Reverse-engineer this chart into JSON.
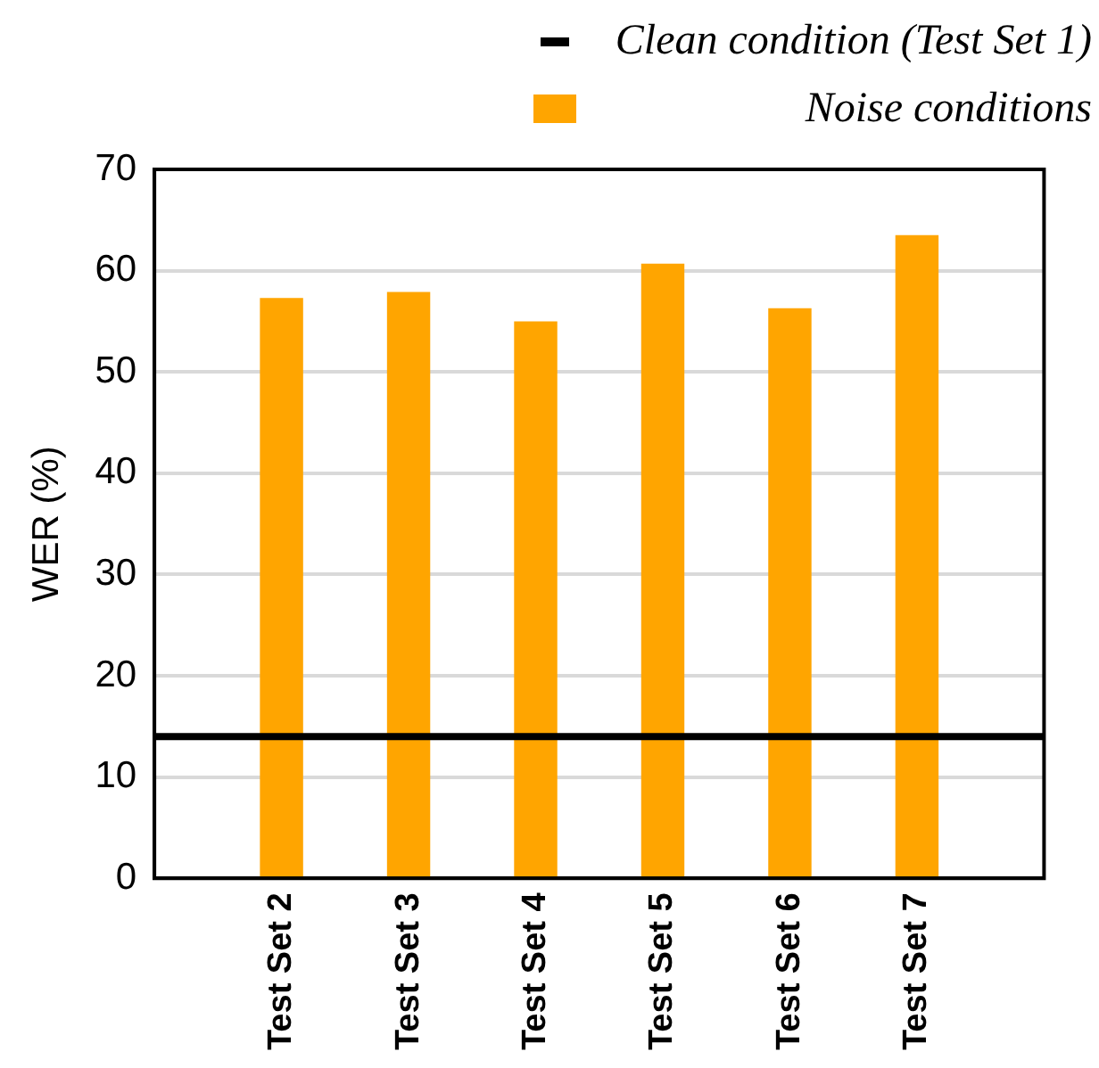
{
  "chart_data": {
    "type": "bar",
    "ylabel": "WER (%)",
    "categories": [
      null,
      "Test Set 2",
      "Test Set 3",
      "Test Set 4",
      "Test Set 5",
      "Test Set 6",
      "Test Set 7",
      null
    ],
    "series": [
      {
        "name": "Clean condition (Test Set 1)",
        "type": "line",
        "color": "#000000",
        "values": [
          14,
          14,
          14,
          14,
          14,
          14,
          14,
          14
        ]
      },
      {
        "name": "Noise conditions",
        "color": "#ffa500",
        "values": [
          null,
          57.3,
          57.9,
          55.0,
          60.7,
          56.3,
          63.5,
          null
        ]
      }
    ],
    "ylim": [
      0,
      70
    ],
    "yticks": [
      0,
      10,
      20,
      30,
      40,
      50,
      60,
      70
    ],
    "grid": "y",
    "legend": "top right",
    "marker": "none"
  }
}
